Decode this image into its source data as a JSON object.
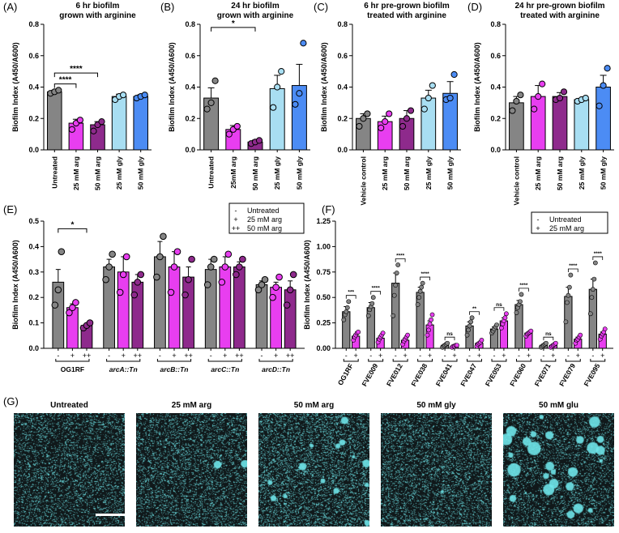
{
  "colors": {
    "grey": "#858585",
    "magenta": "#E83EF0",
    "purple": "#8E2A8C",
    "lightblue": "#A8DEF2",
    "blue": "#4C8CF4",
    "cyan": "#6FE6EA"
  },
  "chart_data": [
    {
      "panel": "(A)",
      "type": "bar",
      "title": [
        "6 hr biofilm",
        "grown with arginine"
      ],
      "ylabel": "Biofilm Index (A450/A600)",
      "ylim": [
        0,
        0.8
      ],
      "yticks": [
        "0.0",
        "0.2",
        "0.4",
        "0.6",
        "0.8"
      ],
      "categories": [
        "Untreated",
        "25 mM arg",
        "50 mM arg",
        "25 mM gly",
        "50 mM gly"
      ],
      "values": [
        0.37,
        0.17,
        0.16,
        0.34,
        0.34
      ],
      "errors": [
        0.01,
        0.025,
        0.02,
        0.015,
        0.012
      ],
      "points": [
        [
          0.36,
          0.37,
          0.38
        ],
        [
          0.13,
          0.17,
          0.19
        ],
        [
          0.12,
          0.16,
          0.18
        ],
        [
          0.32,
          0.34,
          0.35
        ],
        [
          0.33,
          0.34,
          0.35
        ]
      ],
      "color_keys": [
        "grey",
        "magenta",
        "purple",
        "lightblue",
        "blue"
      ],
      "annotations": [
        {
          "label": "****",
          "from": 0,
          "to": 1,
          "level": 0.42
        },
        {
          "label": "****",
          "from": 0,
          "to": 2,
          "level": 0.49
        }
      ]
    },
    {
      "panel": "(B)",
      "type": "bar",
      "title": [
        "24 hr biofilm",
        "grown with arginine"
      ],
      "ylabel": "Biofilm Index (A450/A600)",
      "ylim": [
        0,
        0.8
      ],
      "yticks": [
        "0.0",
        "0.2",
        "0.4",
        "0.6",
        "0.8"
      ],
      "categories": [
        "Untreated",
        "25mM arg",
        "50 mM arg",
        "25 mM gly",
        "50 mM gly"
      ],
      "values": [
        0.33,
        0.13,
        0.05,
        0.39,
        0.41
      ],
      "errors": [
        0.065,
        0.025,
        0.012,
        0.085,
        0.135
      ],
      "points": [
        [
          0.26,
          0.3,
          0.44
        ],
        [
          0.1,
          0.13,
          0.15
        ],
        [
          0.04,
          0.05,
          0.06
        ],
        [
          0.27,
          0.4,
          0.5
        ],
        [
          0.29,
          0.36,
          0.68
        ]
      ],
      "color_keys": [
        "grey",
        "magenta",
        "purple",
        "lightblue",
        "blue"
      ],
      "annotations": [
        {
          "label": "*",
          "from": 0,
          "to": 2,
          "level": 0.78
        }
      ]
    },
    {
      "panel": "(C)",
      "type": "bar",
      "title": [
        "6 hr pre-grown biofilm",
        "treated with arginine"
      ],
      "ylabel": "Biofilm Index (A450/A600)",
      "ylim": [
        0,
        0.8
      ],
      "yticks": [
        "0.0",
        "0.2",
        "0.4",
        "0.6",
        "0.8"
      ],
      "categories": [
        "Vehicle control",
        "25 mM arg",
        "50 mM arg",
        "25 mM gly",
        "50 mM gly"
      ],
      "values": [
        0.2,
        0.18,
        0.2,
        0.33,
        0.36
      ],
      "errors": [
        0.03,
        0.035,
        0.05,
        0.05,
        0.075
      ],
      "points": [
        [
          0.15,
          0.2,
          0.23
        ],
        [
          0.14,
          0.18,
          0.23
        ],
        [
          0.15,
          0.2,
          0.25
        ],
        [
          0.26,
          0.33,
          0.41
        ],
        [
          0.32,
          0.33,
          0.48
        ]
      ],
      "color_keys": [
        "grey",
        "magenta",
        "purple",
        "lightblue",
        "blue"
      ],
      "annotations": []
    },
    {
      "panel": "(D)",
      "type": "bar",
      "title": [
        "24 hr pre-grown biofilm",
        "treated with arginine"
      ],
      "ylabel": "Biofilm Index (A450/A600)",
      "ylim": [
        0,
        0.8
      ],
      "yticks": [
        "0.0",
        "0.2",
        "0.4",
        "0.6",
        "0.8"
      ],
      "categories": [
        "Vehicle control",
        "25 mM arg",
        "50 mM arg",
        "25 mM gly",
        "50 mM gly"
      ],
      "values": [
        0.3,
        0.34,
        0.34,
        0.32,
        0.4
      ],
      "errors": [
        0.04,
        0.07,
        0.025,
        0.008,
        0.075
      ],
      "points": [
        [
          0.25,
          0.31,
          0.35
        ],
        [
          0.26,
          0.34,
          0.42
        ],
        [
          0.32,
          0.33,
          0.37
        ],
        [
          0.31,
          0.32,
          0.33
        ],
        [
          0.28,
          0.41,
          0.52
        ]
      ],
      "color_keys": [
        "grey",
        "magenta",
        "purple",
        "lightblue",
        "blue"
      ],
      "annotations": []
    },
    {
      "panel": "(E)",
      "type": "bar",
      "ylabel": "Biofilm Index (A450/A600)",
      "ylim": [
        0,
        0.5
      ],
      "yticks": [
        "0.0",
        "0.1",
        "0.2",
        "0.3",
        "0.4",
        "0.5"
      ],
      "tick_labels": [
        "-",
        "+",
        "++"
      ],
      "groups": [
        "OG1RF",
        "arcA::Tn",
        "arcB::Tn",
        "arcC::Tn",
        "arcD::Tn"
      ],
      "legend": [
        {
          "symbol": "-",
          "label": "Untreated"
        },
        {
          "symbol": "+",
          "label": "25 mM arg"
        },
        {
          "symbol": "++",
          "label": "50 mM arg"
        }
      ],
      "color_keys": [
        "grey",
        "magenta",
        "purple"
      ],
      "series_values": [
        [
          0.26,
          0.16,
          0.09
        ],
        [
          0.32,
          0.3,
          0.26
        ],
        [
          0.36,
          0.32,
          0.28
        ],
        [
          0.31,
          0.32,
          0.32
        ],
        [
          0.25,
          0.24,
          0.23
        ]
      ],
      "series_errors": [
        [
          0.05,
          0.015,
          0.005
        ],
        [
          0.03,
          0.06,
          0.03
        ],
        [
          0.06,
          0.06,
          0.04
        ],
        [
          0.04,
          0.04,
          0.02
        ],
        [
          0.015,
          0.02,
          0.035
        ]
      ],
      "points": [
        [
          [
            0.17,
            0.23,
            0.38
          ],
          [
            0.14,
            0.16,
            0.18
          ],
          [
            0.08,
            0.09,
            0.1
          ]
        ],
        [
          [
            0.27,
            0.32,
            0.37
          ],
          [
            0.22,
            0.29,
            0.36
          ],
          [
            0.21,
            0.26,
            0.29
          ]
        ],
        [
          [
            0.28,
            0.36,
            0.44
          ],
          [
            0.22,
            0.32,
            0.38
          ],
          [
            0.21,
            0.27,
            0.35
          ]
        ],
        [
          [
            0.25,
            0.32,
            0.35
          ],
          [
            0.26,
            0.32,
            0.37
          ],
          [
            0.29,
            0.32,
            0.35
          ]
        ],
        [
          [
            0.23,
            0.25,
            0.27
          ],
          [
            0.2,
            0.24,
            0.28
          ],
          [
            0.17,
            0.23,
            0.29
          ]
        ]
      ],
      "annotations": [
        {
          "label": "*",
          "from_group": 0,
          "from_bar": 0,
          "to_group": 0,
          "to_bar": 2,
          "level": 0.47
        }
      ]
    },
    {
      "panel": "(F)",
      "type": "bar",
      "ylabel": "Biofilm Index (A450/A600)",
      "ylim": [
        0,
        1.25
      ],
      "yticks": [
        "0.00",
        "0.25",
        "0.50",
        "0.75",
        "1.00",
        "1.25"
      ],
      "tick_labels": [
        "-",
        "+"
      ],
      "groups": [
        "OG1RF",
        "FVE009",
        "FVE012",
        "FVE038",
        "FVE041",
        "FVE047",
        "FVE053",
        "FVE060",
        "FVE071",
        "FVE079",
        "FVE095"
      ],
      "legend": [
        {
          "symbol": "-",
          "label": "Untreated"
        },
        {
          "symbol": "+",
          "label": "25 mM arg"
        }
      ],
      "color_keys": [
        "grey",
        "magenta"
      ],
      "series_values": [
        [
          0.36,
          0.12
        ],
        [
          0.4,
          0.1
        ],
        [
          0.64,
          0.08
        ],
        [
          0.55,
          0.23
        ],
        [
          0.03,
          0.02
        ],
        [
          0.22,
          0.05
        ],
        [
          0.19,
          0.27
        ],
        [
          0.43,
          0.15
        ],
        [
          0.03,
          0.03
        ],
        [
          0.51,
          0.09
        ],
        [
          0.58,
          0.14
        ]
      ],
      "series_errors": [
        [
          0.05,
          0.02
        ],
        [
          0.05,
          0.02
        ],
        [
          0.1,
          0.02
        ],
        [
          0.05,
          0.04
        ],
        [
          0.01,
          0.005
        ],
        [
          0.04,
          0.01
        ],
        [
          0.02,
          0.03
        ],
        [
          0.04,
          0.01
        ],
        [
          0.01,
          0.01
        ],
        [
          0.09,
          0.02
        ],
        [
          0.1,
          0.02
        ]
      ],
      "points": [
        [
          [
            0.28,
            0.33,
            0.36,
            0.4,
            0.46
          ],
          [
            0.08,
            0.11,
            0.13,
            0.15,
            0.16
          ]
        ],
        [
          [
            0.32,
            0.38,
            0.41,
            0.44,
            0.5
          ],
          [
            0.06,
            0.09,
            0.11,
            0.13,
            0.15
          ]
        ],
        [
          [
            0.32,
            0.52,
            0.62,
            0.74,
            0.82
          ],
          [
            0.04,
            0.07,
            0.09,
            0.11,
            0.13
          ]
        ],
        [
          [
            0.43,
            0.5,
            0.56,
            0.6,
            0.64
          ],
          [
            0.13,
            0.18,
            0.24,
            0.28,
            0.33
          ]
        ],
        [
          [
            0.01,
            0.02,
            0.03,
            0.04,
            0.05
          ],
          [
            0.01,
            0.02,
            0.02,
            0.03,
            0.03
          ]
        ],
        [
          [
            0.13,
            0.18,
            0.22,
            0.26,
            0.3
          ],
          [
            0.02,
            0.04,
            0.05,
            0.06,
            0.08
          ]
        ],
        [
          [
            0.15,
            0.17,
            0.19,
            0.21,
            0.23
          ],
          [
            0.2,
            0.24,
            0.27,
            0.3,
            0.34
          ]
        ],
        [
          [
            0.35,
            0.4,
            0.43,
            0.46,
            0.53
          ],
          [
            0.12,
            0.14,
            0.15,
            0.16,
            0.17
          ]
        ],
        [
          [
            0.01,
            0.02,
            0.03,
            0.04,
            0.05
          ],
          [
            0.01,
            0.02,
            0.03,
            0.04,
            0.05
          ]
        ],
        [
          [
            0.26,
            0.45,
            0.52,
            0.6,
            0.72
          ],
          [
            0.05,
            0.08,
            0.09,
            0.11,
            0.13
          ]
        ],
        [
          [
            0.34,
            0.5,
            0.58,
            0.68,
            0.84
          ],
          [
            0.09,
            0.12,
            0.14,
            0.16,
            0.19
          ]
        ]
      ],
      "significance": [
        "***",
        "****",
        "****",
        "****",
        "ns",
        "**",
        "ns",
        "****",
        "ns",
        "****",
        "****"
      ]
    }
  ],
  "panel_g": {
    "label": "(G)",
    "titles": [
      "Untreated",
      "25 mM arg",
      "50 mM arg",
      "50 mM gly",
      "50 mM glu"
    ]
  }
}
